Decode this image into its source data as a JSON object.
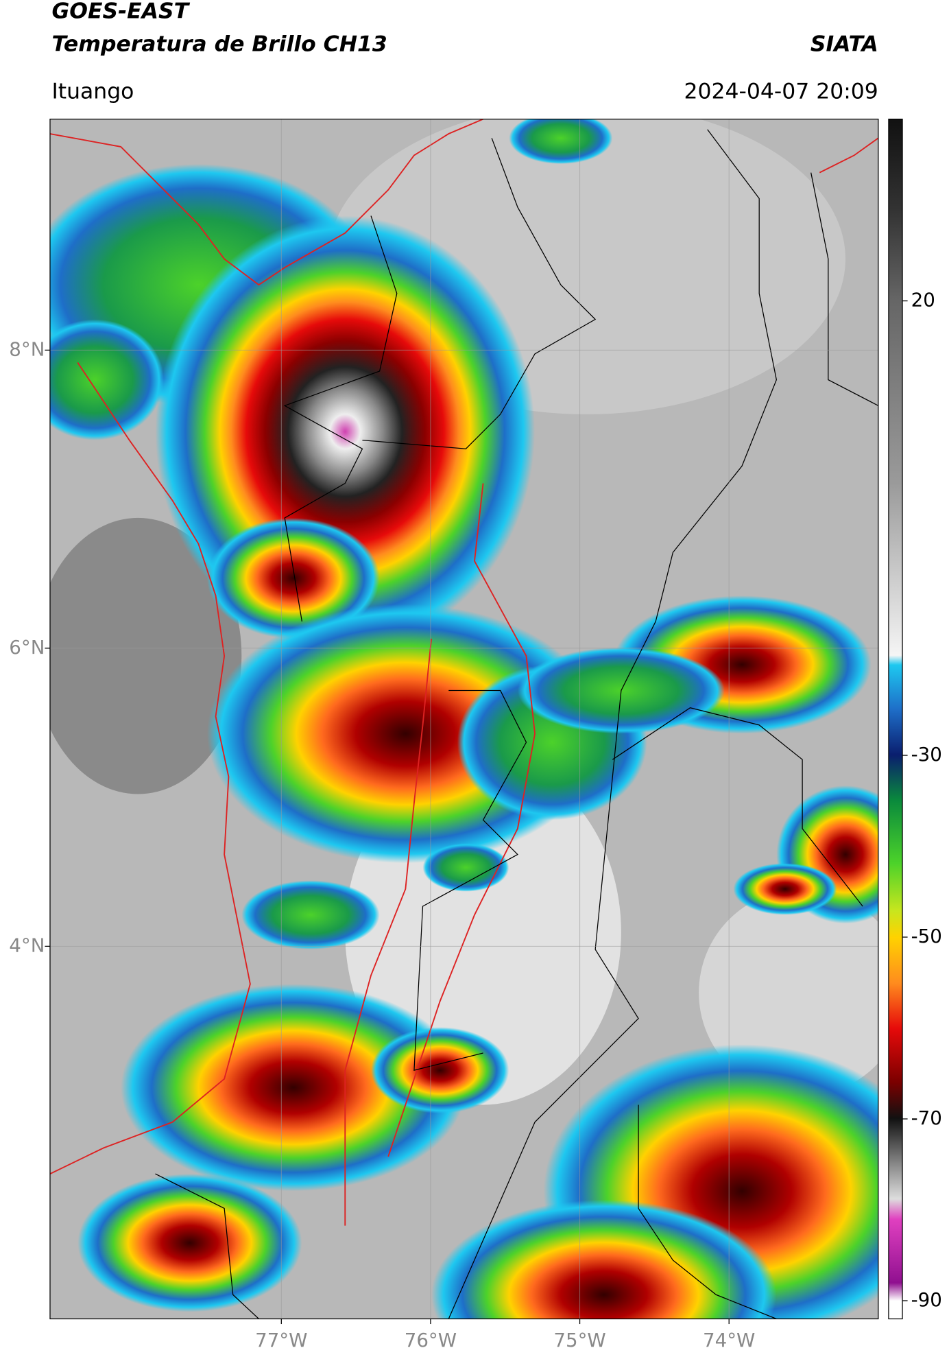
{
  "header": {
    "title": "GOES-EAST",
    "subtitle": "Temperatura de Brillo CH13",
    "source": "SIATA",
    "location": "Ituango",
    "datetime": "2024-04-07 20:09"
  },
  "map": {
    "xlim": [
      -78.55,
      -73.0
    ],
    "ylim": [
      1.5,
      9.55
    ],
    "xticks": [
      {
        "value": -77,
        "label": "77°W"
      },
      {
        "value": -76,
        "label": "76°W"
      },
      {
        "value": -75,
        "label": "75°W"
      },
      {
        "value": -74,
        "label": "74°W"
      }
    ],
    "yticks": [
      {
        "value": 8,
        "label": "8°N"
      },
      {
        "value": 6,
        "label": "6°N"
      },
      {
        "value": 4,
        "label": "4°N"
      }
    ],
    "grid": true
  },
  "colorbar": {
    "lim": [
      -92,
      40
    ],
    "ticks": [
      20,
      -30,
      -50,
      -70,
      -90
    ]
  }
}
